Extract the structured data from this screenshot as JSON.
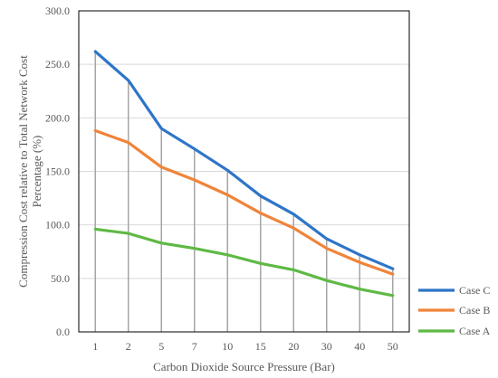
{
  "chart_data": {
    "type": "line",
    "xlabel": "Carbon Dioxide Source Pressure  (Bar)",
    "ylabel_lines": [
      "Compression Cost relative to Total Network Cost",
      "Percentage (%)"
    ],
    "categories": [
      "1",
      "2",
      "5",
      "7",
      "10",
      "15",
      "20",
      "30",
      "40",
      "50"
    ],
    "ylim": [
      0,
      300
    ],
    "yticks": [
      "0.0",
      "50.0",
      "100.0",
      "150.0",
      "200.0",
      "250.0",
      "300.0"
    ],
    "grid": "horizontal",
    "legend_position": "right",
    "drop_lines": true,
    "series": [
      {
        "name": "Case C",
        "color": "#2E75C8",
        "values": [
          262,
          235,
          190,
          171,
          151,
          127,
          110,
          87,
          72,
          59
        ]
      },
      {
        "name": "Case B",
        "color": "#F0843A",
        "values": [
          188,
          177,
          154,
          142,
          128,
          111,
          97,
          78,
          65,
          54
        ]
      },
      {
        "name": "Case A",
        "color": "#5FB945",
        "values": [
          96,
          92,
          83,
          78,
          72,
          64,
          58,
          48,
          40,
          34
        ]
      }
    ]
  }
}
